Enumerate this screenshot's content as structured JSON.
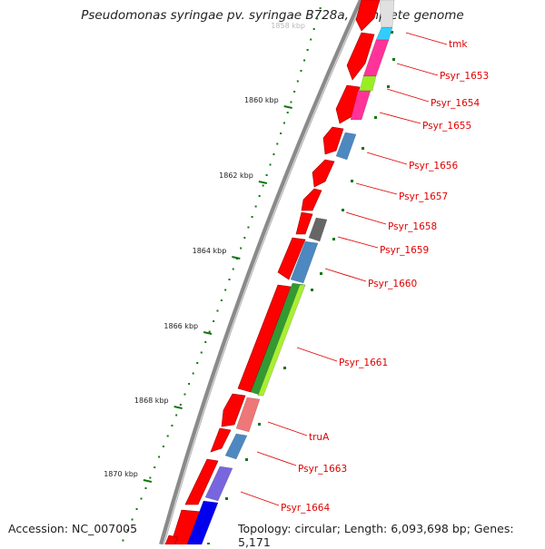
{
  "title": "Pseudomonas syringae pv. syringae B728a, complete genome",
  "footer": {
    "accession": "Accession: NC_007005",
    "summary": "Topology: circular; Length: 6,093,698 bp; Genes: 5,171"
  },
  "scale": {
    "faded_label": "1858 kbp",
    "labels": [
      "1860 kbp",
      "1862 kbp",
      "1864 kbp",
      "1866 kbp",
      "1868 kbp",
      "1870 kbp"
    ]
  },
  "genes": [
    {
      "name": "tmk",
      "color": "#33ccff"
    },
    {
      "name": "Psyr_1653",
      "color": "#ff3399"
    },
    {
      "name": "Psyr_1654",
      "color": "#99ee22"
    },
    {
      "name": "Psyr_1655",
      "color": "#ff3399"
    },
    {
      "name": "Psyr_1656",
      "color": "#4d88c0"
    },
    {
      "name": "Psyr_1657",
      "color": "#ff0000"
    },
    {
      "name": "Psyr_1658",
      "color": "#666666"
    },
    {
      "name": "Psyr_1659",
      "color": "#4d88c0"
    },
    {
      "name": "Psyr_1660",
      "color": "#339933"
    },
    {
      "name": "Psyr_1661",
      "color": "#aaee33"
    },
    {
      "name": "truA",
      "color": "#ee7777"
    },
    {
      "name": "Psyr_1663",
      "color": "#4d88c0"
    },
    {
      "name": "Psyr_1664",
      "color": "#7766dd"
    }
  ],
  "colors": {
    "cds": "#ff0000",
    "blue_cds": "#0000ee",
    "backbone": "#888888",
    "tick": "#117711",
    "label": "#e00000"
  }
}
